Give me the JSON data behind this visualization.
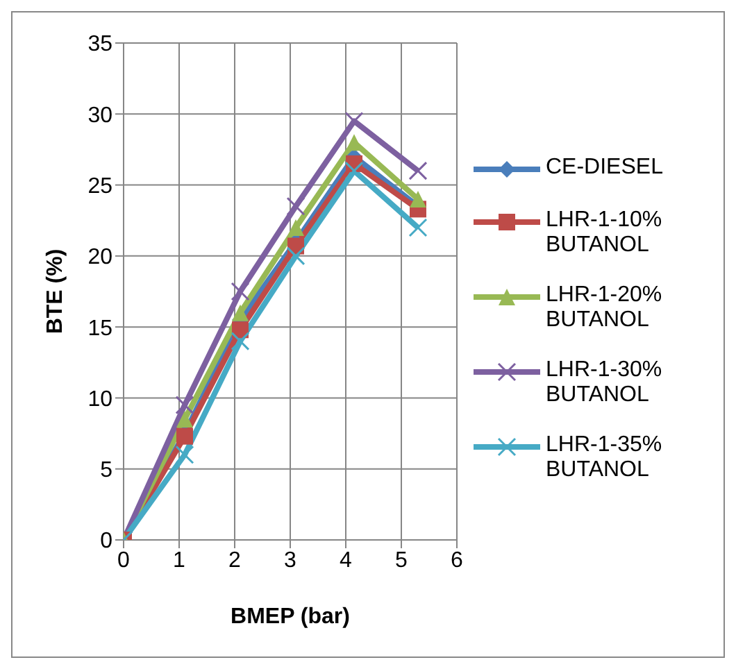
{
  "chart_data": {
    "type": "line",
    "xlabel": "BMEP (bar)",
    "ylabel": "BTE (%)",
    "x": [
      0,
      1.1,
      2.1,
      3.1,
      4.15,
      5.3
    ],
    "xlim": [
      0,
      6
    ],
    "xticks": [
      0,
      1,
      2,
      3,
      4,
      5,
      6
    ],
    "ylim": [
      0,
      35
    ],
    "yticks": [
      0,
      5,
      10,
      15,
      20,
      25,
      30,
      35
    ],
    "grid": true,
    "legend": "right",
    "series": [
      {
        "name": "CE-DIESEL",
        "color": "#4a7ebb",
        "marker": "diamond",
        "values": [
          0,
          7.5,
          15.5,
          21,
          27,
          23.5
        ]
      },
      {
        "name": "LHR-1-10% BUTANOL",
        "color": "#be4b48",
        "marker": "square",
        "values": [
          0,
          7.3,
          14.8,
          20.7,
          26.5,
          23.3
        ]
      },
      {
        "name": "LHR-1-20% BUTANOL",
        "color": "#98b954",
        "marker": "triangle",
        "values": [
          0,
          8.5,
          16,
          22,
          28,
          24
        ]
      },
      {
        "name": "LHR-1-30% BUTANOL",
        "color": "#7d60a0",
        "marker": "cross",
        "values": [
          0,
          9.5,
          17.5,
          23.5,
          29.5,
          26
        ]
      },
      {
        "name": "LHR-1-35% BUTANOL",
        "color": "#46aac5",
        "marker": "cross",
        "values": [
          0,
          6,
          14,
          20,
          26,
          22
        ]
      }
    ]
  }
}
